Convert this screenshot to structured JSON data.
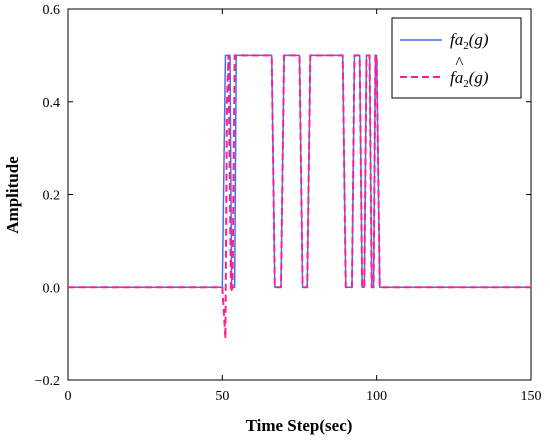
{
  "chart_data": {
    "type": "line",
    "xlabel": "Time Step(sec)",
    "ylabel": "Amplitude",
    "xlim": [
      0,
      150
    ],
    "ylim": [
      -0.2,
      0.6
    ],
    "xticks": [
      0,
      50,
      100,
      150
    ],
    "xtick_labels": [
      "0",
      "50",
      "100",
      "150"
    ],
    "yticks": [
      -0.2,
      0,
      0.2,
      0.4,
      0.6
    ],
    "ytick_labels": [
      "−0.2",
      "0.0",
      "0.2",
      "0.4",
      "0.6"
    ],
    "legend_position": "top-right",
    "series": [
      {
        "name_main": "fa",
        "name_sub": "2",
        "name_arg": "(g)",
        "color": "#4a6fe3",
        "style": "solid",
        "points": [
          [
            0,
            0
          ],
          [
            50,
            0
          ],
          [
            51,
            0.5
          ],
          [
            52.5,
            0.5
          ],
          [
            53,
            0
          ],
          [
            54,
            0
          ],
          [
            54.5,
            0.5
          ],
          [
            66,
            0.5
          ],
          [
            67,
            0
          ],
          [
            69,
            0
          ],
          [
            70,
            0.5
          ],
          [
            75,
            0.5
          ],
          [
            76,
            0
          ],
          [
            77.5,
            0
          ],
          [
            78.5,
            0.5
          ],
          [
            89,
            0.5
          ],
          [
            90,
            0
          ],
          [
            92,
            0
          ],
          [
            92.8,
            0.5
          ],
          [
            94.5,
            0.5
          ],
          [
            95.3,
            0
          ],
          [
            96,
            0
          ],
          [
            96.7,
            0.5
          ],
          [
            97.7,
            0.5
          ],
          [
            98.4,
            0
          ],
          [
            99,
            0
          ],
          [
            99.6,
            0.5
          ],
          [
            100,
            0.5
          ],
          [
            101,
            0
          ],
          [
            150,
            0
          ]
        ]
      },
      {
        "name_main": "fa",
        "name_sub": "2",
        "name_arg": "(g)",
        "name_hat": true,
        "color": "#ff1f8e",
        "style": "dashed",
        "points": [
          [
            0,
            0
          ],
          [
            50,
            0
          ],
          [
            51,
            -0.11
          ],
          [
            51.5,
            0.4
          ],
          [
            52,
            0.5
          ],
          [
            52.8,
            -0.01
          ],
          [
            53.3,
            0
          ],
          [
            54,
            0.5
          ],
          [
            66,
            0.5
          ],
          [
            67,
            0
          ],
          [
            69,
            0
          ],
          [
            70,
            0.5
          ],
          [
            75,
            0.5
          ],
          [
            76,
            0
          ],
          [
            77.5,
            0
          ],
          [
            78.5,
            0.5
          ],
          [
            89,
            0.5
          ],
          [
            90,
            0
          ],
          [
            92,
            0
          ],
          [
            92.8,
            0.5
          ],
          [
            94.5,
            0.5
          ],
          [
            95.3,
            0
          ],
          [
            96,
            0
          ],
          [
            96.7,
            0.5
          ],
          [
            97.7,
            0.5
          ],
          [
            98.4,
            0
          ],
          [
            99,
            0
          ],
          [
            99.6,
            0.5
          ],
          [
            100,
            0.5
          ],
          [
            101,
            0
          ],
          [
            150,
            0
          ]
        ]
      }
    ]
  }
}
